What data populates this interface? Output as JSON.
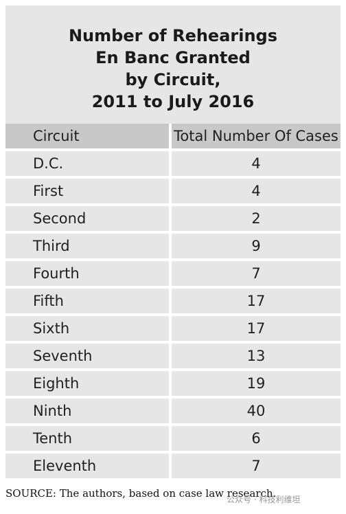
{
  "chart_data": {
    "type": "table",
    "title_lines": [
      "Number of Rehearings",
      "En Banc Granted",
      "by Circuit,",
      "2011 to July 2016"
    ],
    "columns": [
      "Circuit",
      "Total Number Of Cases"
    ],
    "categories": [
      "D.C.",
      "First",
      "Second",
      "Third",
      "Fourth",
      "Fifth",
      "Sixth",
      "Seventh",
      "Eighth",
      "Ninth",
      "Tenth",
      "Eleventh"
    ],
    "values": [
      4,
      4,
      2,
      9,
      7,
      17,
      17,
      13,
      19,
      40,
      6,
      7
    ]
  },
  "source": "SOURCE: The authors, based on case law research.",
  "watermark": "公众号 · 科技利维坦",
  "colors": {
    "panel_bg": "#e6e6e6",
    "header_bg": "#c8c8c8",
    "divider": "#ffffff",
    "text": "#1f1f1f"
  }
}
